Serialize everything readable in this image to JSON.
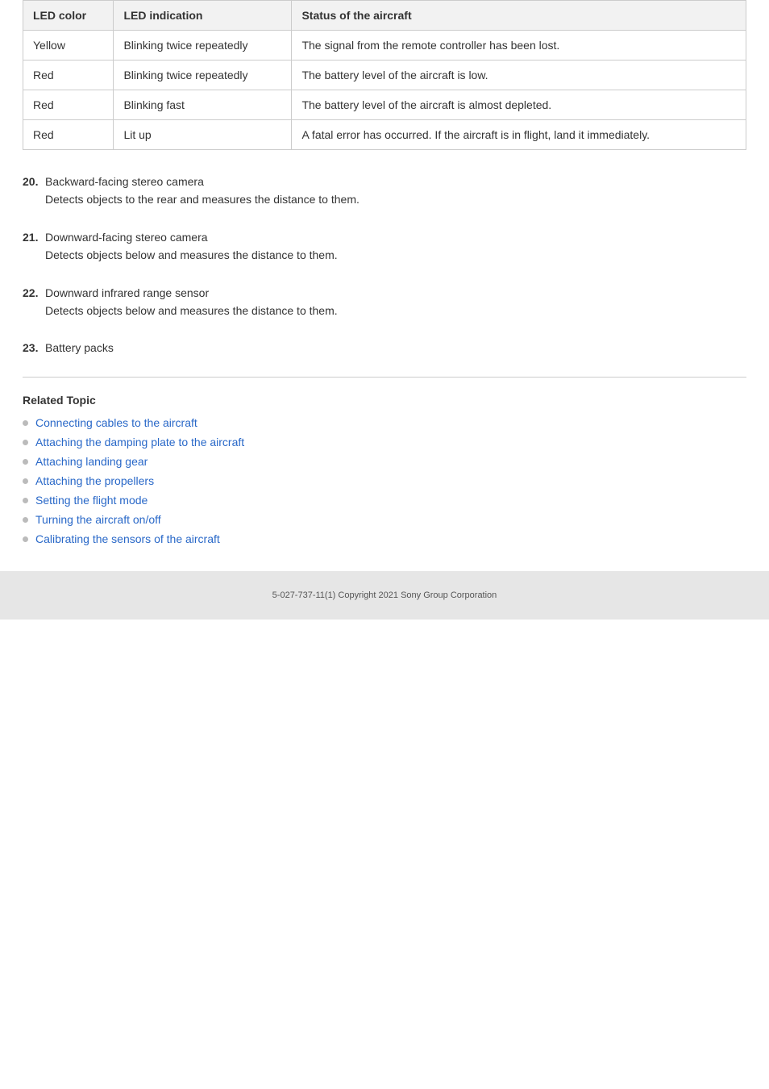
{
  "table": {
    "headers": [
      "LED color",
      "LED indication",
      "Status of the aircraft"
    ],
    "rows": [
      [
        "Yellow",
        "Blinking twice repeatedly",
        "The signal from the remote controller has been lost."
      ],
      [
        "Red",
        "Blinking twice repeatedly",
        "The battery level of the aircraft is low."
      ],
      [
        "Red",
        "Blinking fast",
        "The battery level of the aircraft is almost depleted."
      ],
      [
        "Red",
        "Lit up",
        "A fatal error has occurred. If the aircraft is in flight, land it immediately."
      ]
    ]
  },
  "items": [
    {
      "num": "20.",
      "title": "Backward-facing stereo camera",
      "desc": "Detects objects to the rear and measures the distance to them."
    },
    {
      "num": "21.",
      "title": "Downward-facing stereo camera",
      "desc": "Detects objects below and measures the distance to them."
    },
    {
      "num": "22.",
      "title": "Downward infrared range sensor",
      "desc": "Detects objects below and measures the distance to them."
    },
    {
      "num": "23.",
      "title": "Battery packs",
      "desc": ""
    }
  ],
  "related": {
    "heading": "Related Topic",
    "links": [
      "Connecting cables to the aircraft",
      "Attaching the damping plate to the aircraft",
      "Attaching landing gear",
      "Attaching the propellers",
      "Setting the flight mode",
      "Turning the aircraft on/off",
      "Calibrating the sensors of the aircraft"
    ]
  },
  "footer": "5-027-737-11(1) Copyright 2021 Sony Group Corporation"
}
